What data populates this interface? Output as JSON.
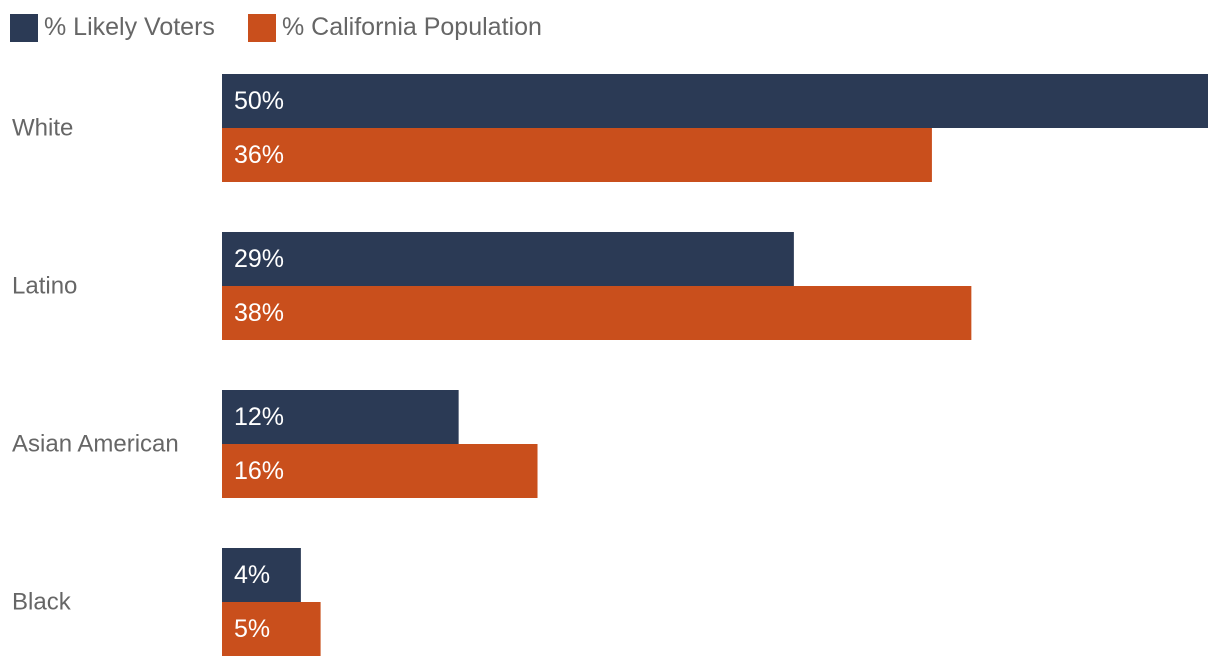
{
  "chart_data": {
    "type": "bar",
    "orientation": "horizontal",
    "categories": [
      "White",
      "Latino",
      "Asian American",
      "Black"
    ],
    "series": [
      {
        "name": "% Likely Voters",
        "color": "#2b3a55",
        "values": [
          50,
          29,
          12,
          4
        ],
        "labels": [
          "50%",
          "29%",
          "12%",
          "4%"
        ]
      },
      {
        "name": "% California Population",
        "color": "#c94f1c",
        "values": [
          36,
          38,
          16,
          5
        ],
        "labels": [
          "36%",
          "38%",
          "16%",
          "5%"
        ]
      }
    ],
    "xlim": [
      0,
      50
    ],
    "grid": false,
    "legend": "top-left",
    "title": "",
    "xlabel": "",
    "ylabel": ""
  }
}
